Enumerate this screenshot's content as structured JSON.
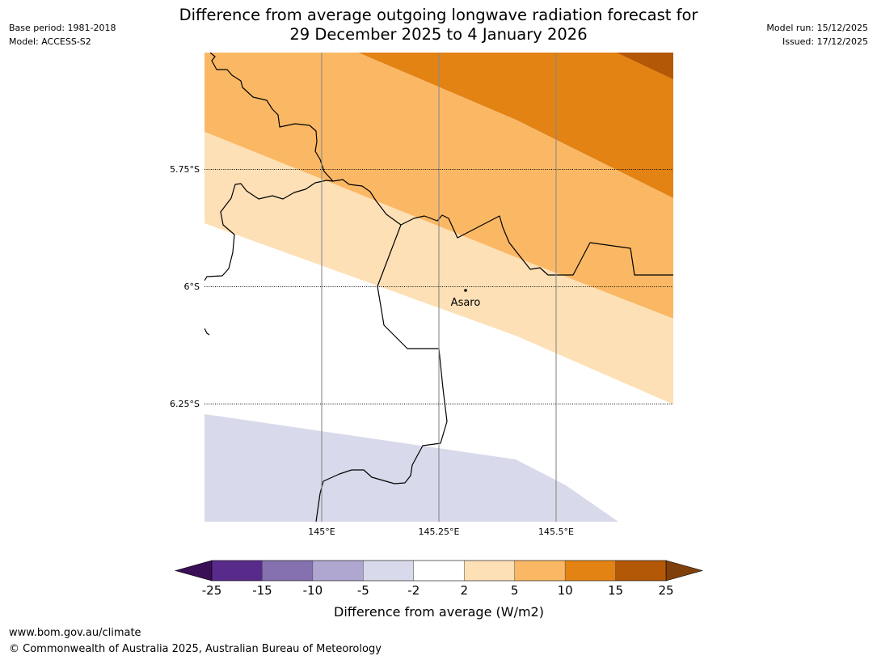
{
  "header": {
    "title_line1": "Difference from average outgoing longwave radiation forecast for",
    "title_line2": "29 December 2025 to 4 January 2026",
    "base_period": "Base period: 1981-2018",
    "model": "Model: ACCESS-S2",
    "model_run": "Model run: 15/12/2025",
    "issued": "Issued: 17/12/2025"
  },
  "map": {
    "lat_labels": [
      "5.75°S",
      "6°S",
      "6.25°S"
    ],
    "lon_labels": [
      "145°E",
      "145.25°E",
      "145.5°E"
    ],
    "place": {
      "name": "Asaro"
    }
  },
  "legend": {
    "tick_labels": [
      "-25",
      "-15",
      "-10",
      "-5",
      "-2",
      "2",
      "5",
      "10",
      "15",
      "25"
    ],
    "colors": [
      "#582a8a",
      "#8571af",
      "#b0a7d1",
      "#d8d9ea",
      "#ffffff",
      "#fde0b6",
      "#fbb864",
      "#e28314",
      "#b35806"
    ],
    "under_color": "#3a0f55",
    "over_color": "#80400c",
    "label": "Difference from average (W/m2)"
  },
  "footer": {
    "url": "www.bom.gov.au/climate",
    "copyright": "© Commonwealth of Australia 2025, Australian Bureau of Meteorology"
  }
}
